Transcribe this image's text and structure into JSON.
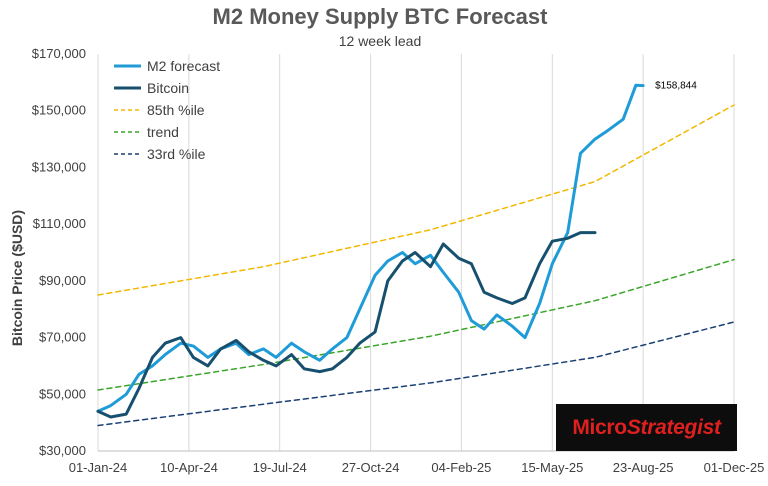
{
  "logo": {
    "part1": "Micro",
    "part2": "Strategist",
    "color": "#e01f1f",
    "background": "#0d0d0d"
  },
  "chart_data": {
    "type": "line",
    "title": "M2 Money Supply BTC Forecast",
    "subtitle": "12 week lead",
    "ylabel": "Bitcoin Price  ($USD)",
    "xlabel": "",
    "ylim": [
      30000,
      170000
    ],
    "yticks": [
      30000,
      50000,
      70000,
      90000,
      110000,
      130000,
      150000,
      170000
    ],
    "ytick_labels": [
      "$30,000",
      "$50,000",
      "$70,000",
      "$90,000",
      "$110,000",
      "$130,000",
      "$150,000",
      "$170,000"
    ],
    "xlim": [
      "2024-01-01",
      "2025-12-01"
    ],
    "xticks": [
      "2024-01-01",
      "2024-04-10",
      "2024-07-19",
      "2024-10-27",
      "2025-02-04",
      "2025-05-15",
      "2025-08-23",
      "2025-12-01"
    ],
    "xtick_labels": [
      "01-Jan-24",
      "10-Apr-24",
      "19-Jul-24",
      "27-Oct-24",
      "04-Feb-25",
      "15-May-25",
      "23-Aug-25",
      "01-Dec-25"
    ],
    "grid": "vertical",
    "legend_position": "top-left",
    "annotations": [
      {
        "text": "$158,844",
        "x": "2025-08-23",
        "y": 158844
      }
    ],
    "series": [
      {
        "name": "M2 forecast",
        "style": "solid",
        "color": "#1f9bd7",
        "width": 3,
        "x": [
          "2024-01-01",
          "2024-01-15",
          "2024-02-01",
          "2024-02-15",
          "2024-03-01",
          "2024-03-15",
          "2024-04-01",
          "2024-04-15",
          "2024-05-01",
          "2024-05-15",
          "2024-06-01",
          "2024-06-15",
          "2024-07-01",
          "2024-07-15",
          "2024-08-01",
          "2024-08-15",
          "2024-09-01",
          "2024-09-15",
          "2024-10-01",
          "2024-10-15",
          "2024-11-01",
          "2024-11-15",
          "2024-12-01",
          "2024-12-15",
          "2025-01-01",
          "2025-01-15",
          "2025-02-01",
          "2025-02-15",
          "2025-03-01",
          "2025-03-15",
          "2025-04-01",
          "2025-04-15",
          "2025-05-01",
          "2025-05-15",
          "2025-06-01",
          "2025-06-15",
          "2025-07-01",
          "2025-07-15",
          "2025-08-01",
          "2025-08-15",
          "2025-08-23"
        ],
        "values": [
          44000,
          46000,
          50000,
          57000,
          60000,
          64000,
          68000,
          67000,
          63000,
          66000,
          68000,
          64000,
          66000,
          63000,
          68000,
          65000,
          62000,
          66000,
          70000,
          80000,
          92000,
          97000,
          100000,
          96000,
          99000,
          93000,
          86000,
          76000,
          73000,
          78000,
          74000,
          70000,
          82000,
          96000,
          107000,
          135000,
          140000,
          143000,
          147000,
          159000,
          158844
        ]
      },
      {
        "name": "Bitcoin",
        "style": "solid",
        "color": "#17506e",
        "width": 3,
        "x": [
          "2024-01-01",
          "2024-01-15",
          "2024-02-01",
          "2024-02-15",
          "2024-03-01",
          "2024-03-15",
          "2024-04-01",
          "2024-04-15",
          "2024-05-01",
          "2024-05-15",
          "2024-06-01",
          "2024-06-15",
          "2024-07-01",
          "2024-07-15",
          "2024-08-01",
          "2024-08-15",
          "2024-09-01",
          "2024-09-15",
          "2024-10-01",
          "2024-10-15",
          "2024-11-01",
          "2024-11-15",
          "2024-12-01",
          "2024-12-15",
          "2025-01-01",
          "2025-01-15",
          "2025-02-01",
          "2025-02-15",
          "2025-03-01",
          "2025-03-15",
          "2025-04-01",
          "2025-04-15",
          "2025-05-01",
          "2025-05-15",
          "2025-06-01",
          "2025-06-15",
          "2025-07-01"
        ],
        "values": [
          44000,
          42000,
          43000,
          52000,
          63000,
          68000,
          70000,
          63000,
          60000,
          66000,
          69000,
          65000,
          62000,
          60000,
          64000,
          59000,
          58000,
          59000,
          63000,
          68000,
          72000,
          90000,
          97000,
          100000,
          95000,
          103000,
          98000,
          96000,
          86000,
          84000,
          82000,
          84000,
          96000,
          104000,
          105000,
          107000,
          107000
        ]
      },
      {
        "name": "85th %ile",
        "style": "dashed",
        "color": "#f2b800",
        "width": 1.5,
        "x": [
          "2024-01-01",
          "2024-07-01",
          "2025-01-01",
          "2025-07-01",
          "2025-12-01"
        ],
        "values": [
          85000,
          95000,
          108000,
          125000,
          152000
        ]
      },
      {
        "name": "trend",
        "style": "dashed",
        "color": "#3aa52a",
        "width": 1.5,
        "x": [
          "2024-01-01",
          "2024-07-01",
          "2025-01-01",
          "2025-07-01",
          "2025-12-01"
        ],
        "values": [
          51500,
          60500,
          70500,
          83000,
          97500
        ]
      },
      {
        "name": "33rd %ile",
        "style": "dashed",
        "color": "#1a3f72",
        "width": 1.5,
        "x": [
          "2024-01-01",
          "2024-07-01",
          "2025-01-01",
          "2025-07-01",
          "2025-12-01"
        ],
        "values": [
          39000,
          46500,
          54000,
          63000,
          75500
        ]
      }
    ]
  }
}
